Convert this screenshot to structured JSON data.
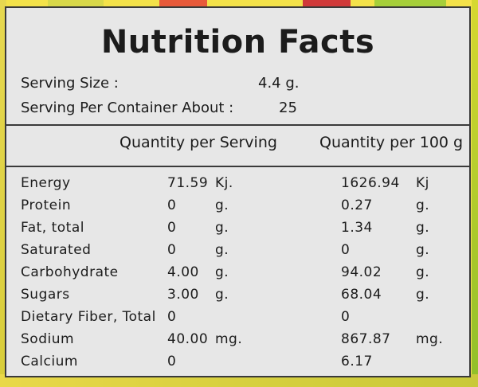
{
  "title": "Nutrition Facts",
  "serving_size": {
    "label": "Serving Size :",
    "value": "4.4 g."
  },
  "servings_per_container": {
    "label": "Serving Per Container About :",
    "value": "25"
  },
  "columns": {
    "per_serving": "Quantity per Serving",
    "per_100g": "Quantity per 100 g"
  },
  "rows": [
    {
      "name": "Energy",
      "serving_value": "71.59",
      "serving_unit": "Kj.",
      "per100_value": "1626.94",
      "per100_unit": "Kj"
    },
    {
      "name": "Protein",
      "serving_value": "0",
      "serving_unit": "g.",
      "per100_value": "0.27",
      "per100_unit": "g."
    },
    {
      "name": "Fat, total",
      "serving_value": "0",
      "serving_unit": "g.",
      "per100_value": "1.34",
      "per100_unit": "g."
    },
    {
      "name": "Saturated",
      "serving_value": "0",
      "serving_unit": "g.",
      "per100_value": "0",
      "per100_unit": "g."
    },
    {
      "name": "Carbohydrate",
      "serving_value": "4.00",
      "serving_unit": "g.",
      "per100_value": "94.02",
      "per100_unit": "g."
    },
    {
      "name": "Sugars",
      "serving_value": "3.00",
      "serving_unit": "g.",
      "per100_value": "68.04",
      "per100_unit": "g."
    },
    {
      "name": "Dietary Fiber, Total",
      "serving_value": "0",
      "serving_unit": "",
      "per100_value": "0",
      "per100_unit": ""
    },
    {
      "name": "Sodium",
      "serving_value": "40.00",
      "serving_unit": "mg.",
      "per100_value": "867.87",
      "per100_unit": "mg."
    },
    {
      "name": "Calcium",
      "serving_value": "0",
      "serving_unit": "",
      "per100_value": "6.17",
      "per100_unit": ""
    }
  ]
}
